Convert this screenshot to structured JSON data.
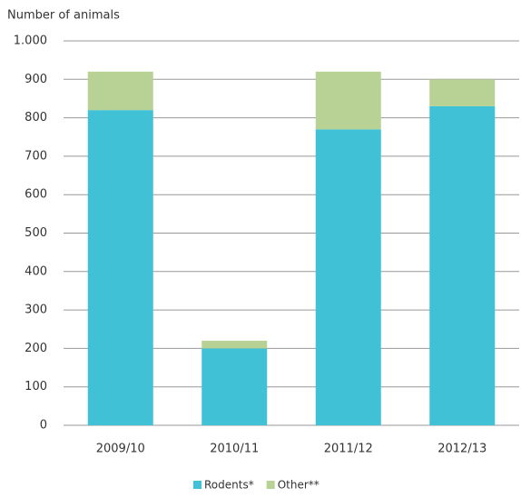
{
  "chart_data": {
    "type": "stacked_bar",
    "y_axis_label": "Number of animals",
    "categories": [
      "2009/10",
      "2010/11",
      "2011/12",
      "2012/13"
    ],
    "series": [
      {
        "name": "Rodents*",
        "color": "#40c1d6",
        "values": [
          820,
          200,
          770,
          830
        ]
      },
      {
        "name": "Other**",
        "color": "#b8d296",
        "values": [
          100,
          20,
          150,
          70
        ]
      }
    ],
    "ylim": [
      0,
      1000
    ],
    "yticks": [
      0,
      100,
      200,
      300,
      400,
      500,
      600,
      700,
      800,
      900,
      {
        "value": 1000,
        "label": "1.000"
      }
    ],
    "grid": true,
    "legend": "bottom"
  }
}
